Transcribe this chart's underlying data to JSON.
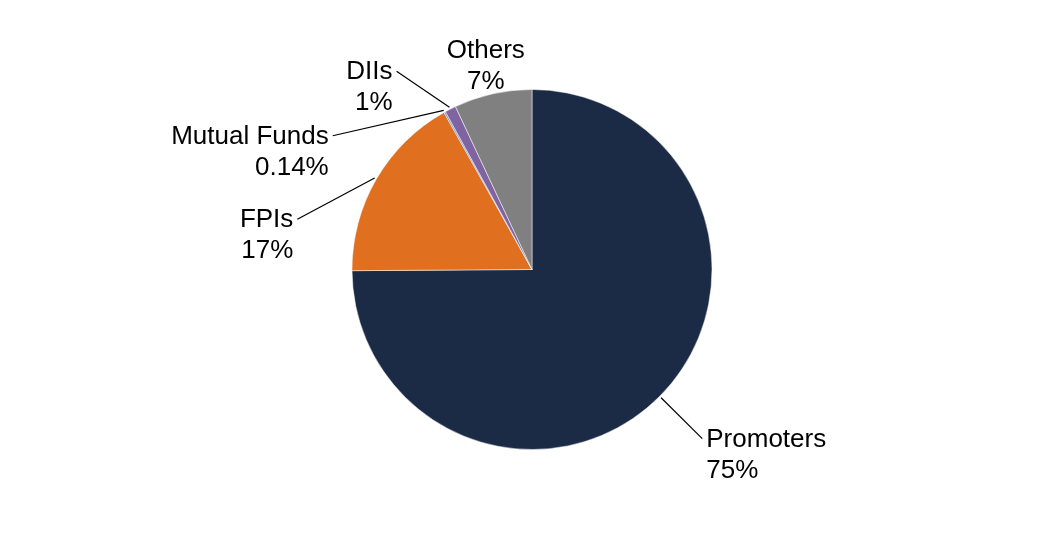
{
  "chart_data": {
    "type": "pie",
    "categories": [
      "Promoters",
      "FPIs",
      "Mutual Funds",
      "DIIs",
      "Others"
    ],
    "values": [
      75,
      17,
      0.14,
      1,
      7
    ],
    "value_labels": [
      "75%",
      "17%",
      "0.14%",
      "1%",
      "7%"
    ],
    "colors": [
      "#1b2a45",
      "#e07020",
      "#5b9bd5",
      "#8064a2",
      "#808080"
    ]
  }
}
